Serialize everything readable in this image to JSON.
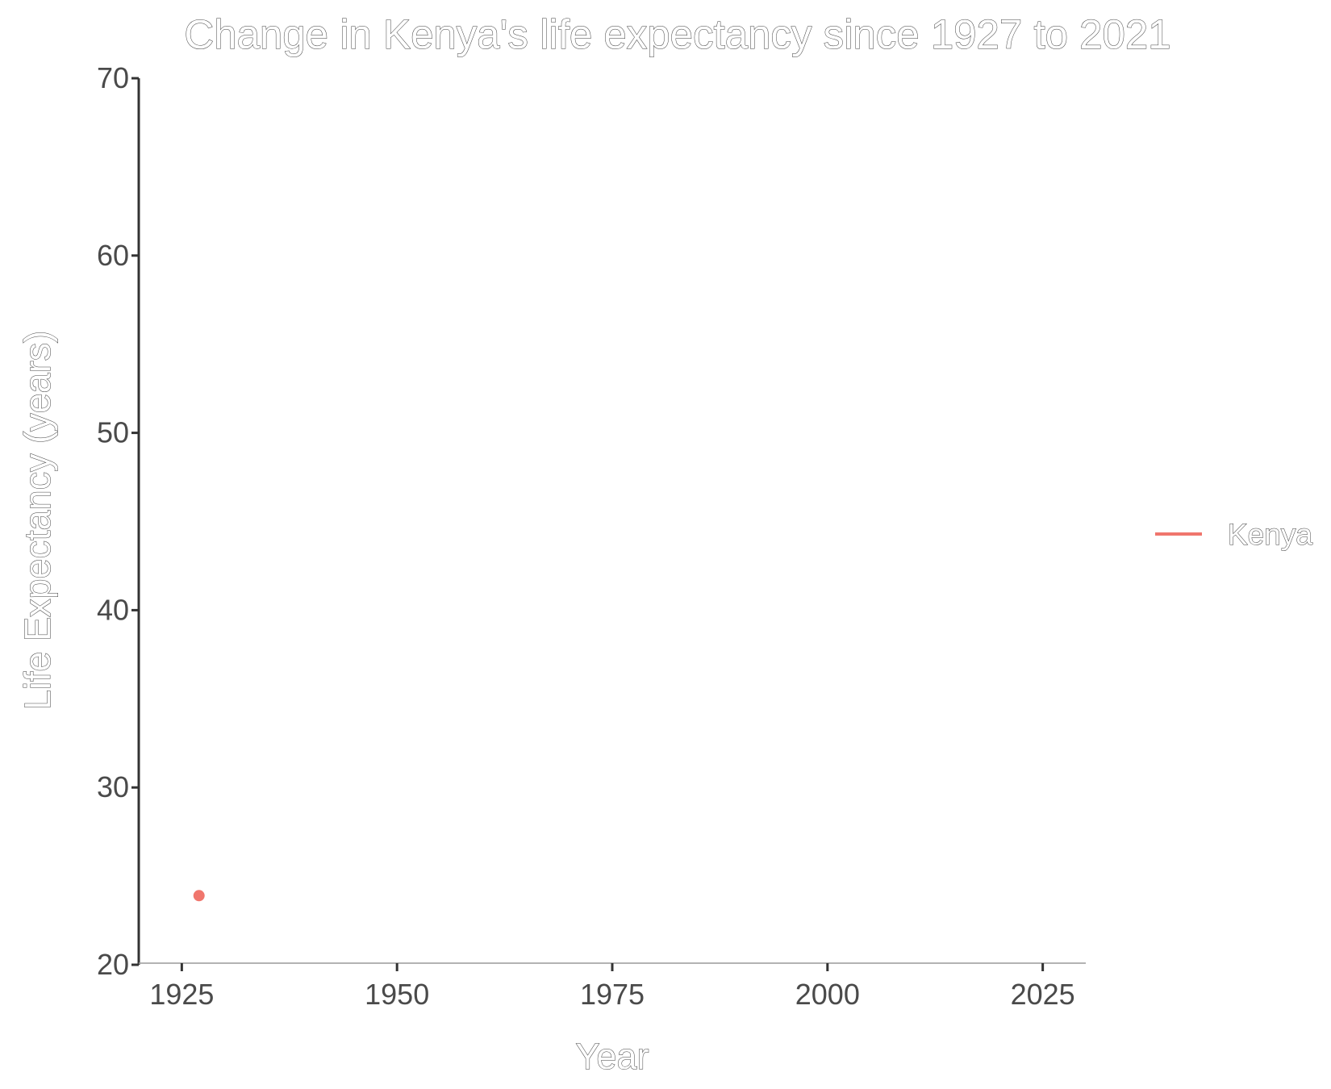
{
  "chart_data": {
    "type": "line",
    "title": "Change in Kenya's life expectancy since 1927 to 2021",
    "xlabel": "Year",
    "ylabel": "Life Expectancy (years)",
    "xlim": [
      1920,
      2030
    ],
    "ylim": [
      20,
      70
    ],
    "x_ticks": [
      1925,
      1950,
      1975,
      2000,
      2025
    ],
    "y_ticks": [
      20,
      30,
      40,
      50,
      60,
      70
    ],
    "grid": false,
    "legend_position": "right",
    "series": [
      {
        "name": "Kenya",
        "color": "#f0766d",
        "points": [
          {
            "x": 1927,
            "y": 23.9
          }
        ]
      }
    ]
  }
}
